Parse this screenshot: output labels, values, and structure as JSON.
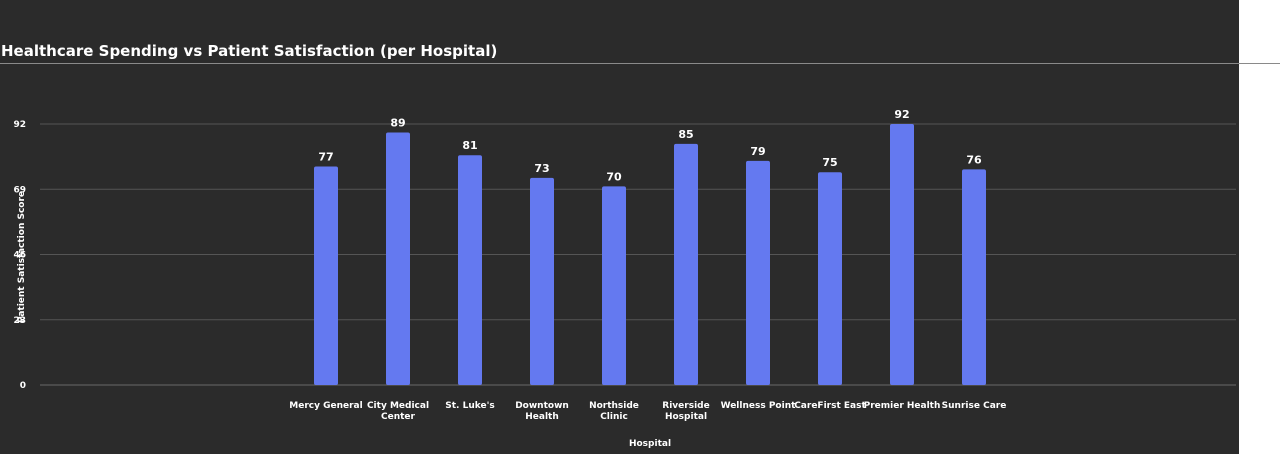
{
  "chart_data": {
    "type": "bar",
    "title": "Healthcare Spending vs Patient Satisfaction (per Hospital)",
    "xlabel": "Hospital",
    "ylabel": "Patient Satisfaction Score",
    "categories": [
      [
        "Mercy General"
      ],
      [
        "City Medical",
        "Center"
      ],
      [
        "St. Luke's"
      ],
      [
        "Downtown",
        "Health"
      ],
      [
        "Northside",
        "Clinic"
      ],
      [
        "Riverside",
        "Hospital"
      ],
      [
        "Wellness Point"
      ],
      [
        "CareFirst East"
      ],
      [
        "Premier Health"
      ],
      [
        "Sunrise Care"
      ]
    ],
    "values": [
      77,
      89,
      81,
      73,
      70,
      85,
      79,
      75,
      92,
      76
    ],
    "yticks": [
      0,
      23,
      46,
      69,
      92
    ],
    "ylim": [
      0,
      92
    ],
    "grid": true,
    "legend": "none",
    "colors": {
      "bar": "#6479f0",
      "background": "#2b2b2b",
      "grid": "#555555",
      "text": "#ffffff"
    }
  }
}
